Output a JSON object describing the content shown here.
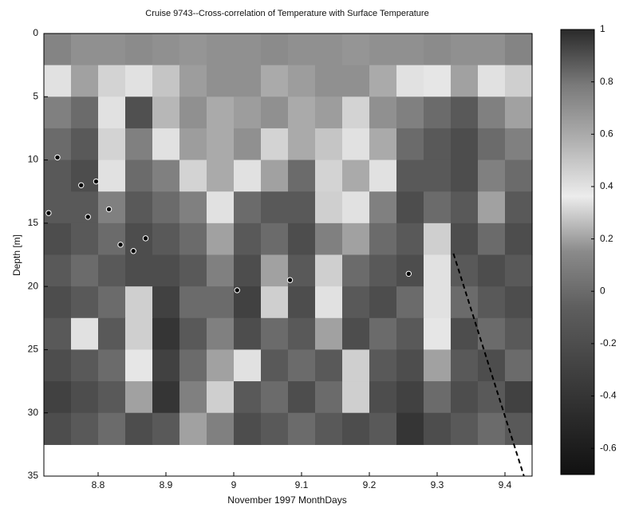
{
  "chart_data": {
    "type": "heatmap",
    "title": "Cruise 9743--Cross-correlation of Temperature with Surface Temperature",
    "x_label": "November 1997 MonthDays",
    "y_label": "Depth [m]",
    "xlim": [
      8.72,
      9.44
    ],
    "ylim": [
      0,
      35
    ],
    "xticks": [
      8.8,
      8.9,
      9,
      9.1,
      9.2,
      9.3,
      9.4
    ],
    "yticks": [
      0,
      5,
      10,
      15,
      20,
      25,
      30,
      35
    ],
    "zlim": [
      -0.7,
      1
    ],
    "zticks": [
      1,
      0.8,
      0.6,
      0.4,
      0.2,
      0,
      -0.2,
      -0.4,
      -0.6
    ],
    "colormap": [
      "#111111",
      "#2a2a2a",
      "#444444",
      "#5e5e5e",
      "#8a8a8a",
      "#ececec",
      "#b0b0b0",
      "#7a7a7a",
      "#2a2a2a"
    ],
    "x": [
      8.74,
      8.78,
      8.82,
      8.86,
      8.9,
      8.94,
      8.98,
      9.02,
      9.06,
      9.1,
      9.14,
      9.18,
      9.22,
      9.26,
      9.3,
      9.34,
      9.38,
      9.42
    ],
    "y": [
      1.25,
      3.75,
      6.25,
      8.75,
      11.25,
      13.75,
      16.25,
      18.75,
      21.25,
      23.75,
      26.25,
      28.75,
      31.25
    ],
    "z": [
      [
        0.75,
        0.7,
        0.7,
        0.72,
        0.7,
        0.68,
        0.7,
        0.7,
        0.72,
        0.7,
        0.7,
        0.68,
        0.7,
        0.7,
        0.72,
        0.7,
        0.7,
        0.75
      ],
      [
        0.4,
        0.2,
        0.45,
        0.4,
        0.5,
        0.65,
        0.7,
        0.7,
        0.6,
        0.65,
        0.7,
        0.7,
        0.6,
        0.4,
        0.35,
        0.2,
        0.4,
        0.3
      ],
      [
        0.1,
        0.0,
        0.4,
        0.9,
        0.55,
        0.7,
        0.6,
        0.65,
        0.7,
        0.6,
        0.65,
        0.45,
        0.7,
        0.1,
        0.0,
        -0.1,
        0.1,
        0.2
      ],
      [
        0.0,
        -0.1,
        0.45,
        0.1,
        0.4,
        0.65,
        0.6,
        0.7,
        0.45,
        0.6,
        0.5,
        0.4,
        0.6,
        0.0,
        -0.1,
        -0.2,
        0.0,
        0.1
      ],
      [
        -0.1,
        -0.2,
        0.4,
        0.0,
        0.1,
        0.45,
        0.6,
        0.4,
        0.2,
        0.0,
        0.45,
        0.6,
        0.4,
        -0.1,
        -0.1,
        -0.2,
        0.1,
        0.0
      ],
      [
        -0.1,
        -0.1,
        0.1,
        -0.1,
        0.0,
        0.1,
        0.4,
        0.0,
        -0.1,
        -0.1,
        0.3,
        0.4,
        0.1,
        -0.2,
        0.0,
        -0.1,
        0.2,
        -0.1
      ],
      [
        -0.2,
        -0.1,
        0.0,
        -0.2,
        -0.1,
        0.0,
        0.2,
        -0.1,
        0.0,
        -0.2,
        0.1,
        0.2,
        0.0,
        -0.1,
        0.3,
        -0.2,
        0.0,
        -0.2
      ],
      [
        -0.1,
        0.0,
        -0.1,
        -0.2,
        -0.2,
        -0.1,
        0.1,
        -0.2,
        0.2,
        -0.1,
        0.3,
        0.0,
        -0.1,
        -0.2,
        0.4,
        -0.1,
        -0.2,
        -0.1
      ],
      [
        -0.2,
        -0.1,
        0.0,
        0.3,
        -0.3,
        0.0,
        0.0,
        -0.3,
        0.3,
        -0.2,
        0.4,
        -0.1,
        -0.2,
        0.0,
        0.4,
        0.0,
        -0.1,
        -0.2
      ],
      [
        -0.1,
        0.4,
        -0.1,
        0.3,
        -0.4,
        -0.1,
        0.1,
        -0.2,
        0.0,
        -0.1,
        0.2,
        -0.2,
        0.0,
        -0.1,
        0.35,
        -0.2,
        0.0,
        -0.1
      ],
      [
        -0.2,
        -0.1,
        0.0,
        0.35,
        -0.3,
        0.0,
        0.2,
        0.4,
        -0.1,
        0.0,
        -0.1,
        0.3,
        -0.1,
        -0.2,
        0.2,
        -0.1,
        -0.2,
        0.0
      ],
      [
        -0.3,
        -0.2,
        -0.1,
        0.2,
        -0.4,
        0.1,
        0.3,
        -0.1,
        0.0,
        -0.2,
        0.0,
        0.3,
        -0.2,
        -0.3,
        0.0,
        -0.2,
        -0.1,
        -0.3
      ],
      [
        -0.2,
        -0.1,
        0.0,
        -0.2,
        -0.1,
        0.2,
        0.1,
        -0.2,
        -0.1,
        0.0,
        -0.1,
        -0.2,
        -0.1,
        -0.4,
        -0.2,
        -0.1,
        0.0,
        -0.1
      ]
    ],
    "points": {
      "color": "#000000",
      "x": [
        8.727,
        8.74,
        8.775,
        8.785,
        8.797,
        8.816,
        8.833,
        8.852,
        8.87,
        9.005,
        9.083,
        9.258
      ],
      "y": [
        14.2,
        9.8,
        12,
        14.5,
        11.7,
        13.9,
        16.7,
        17.2,
        16.2,
        20.3,
        19.5,
        19.0
      ]
    },
    "dashed_line": {
      "color": "#000000",
      "x": [
        9.324,
        9.428
      ],
      "y": [
        17.4,
        35
      ]
    }
  }
}
